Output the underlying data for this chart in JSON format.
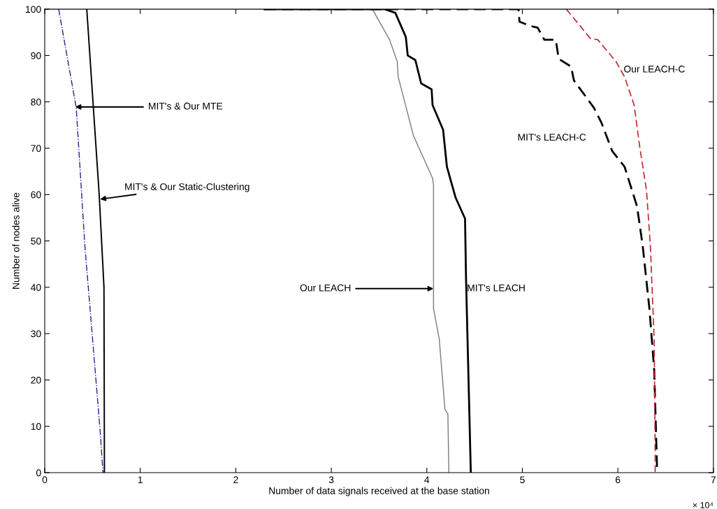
{
  "chart_data": {
    "type": "line",
    "xlabel": "Number of data signals received at the base station",
    "ylabel": "Number of nodes alive",
    "xlim": [
      0,
      7
    ],
    "xticks": [
      0,
      1,
      2,
      3,
      4,
      5,
      6,
      7
    ],
    "ylim": [
      0,
      100
    ],
    "yticks": [
      0,
      10,
      20,
      30,
      40,
      50,
      60,
      70,
      80,
      90,
      100
    ],
    "grid": false,
    "legend": false,
    "marker": "none",
    "series": [
      {
        "color": "#23238f",
        "line_style": "dashdot",
        "x": [
          0.146,
          0.33,
          0.42,
          0.58,
          0.61
        ],
        "values": [
          100,
          78.7,
          49,
          9,
          0
        ]
      },
      {
        "color": "#000000",
        "line_style": "solid",
        "x": [
          0.44,
          0.57,
          0.62,
          0.625
        ],
        "values": [
          100,
          60,
          40,
          0
        ]
      },
      {
        "color": "#7a7a7a",
        "line_style": "solid",
        "x": [
          2.3,
          3.43,
          3.61,
          3.69,
          3.7,
          3.86,
          4.06,
          4.07,
          4.07,
          4.13,
          4.19,
          4.22,
          4.23,
          4.23
        ],
        "values": [
          100,
          100,
          93.4,
          88.7,
          85.4,
          72.7,
          63.5,
          62,
          35.4,
          28.8,
          13.6,
          12.7,
          0.9,
          0
        ]
      },
      {
        "color": "#000000",
        "line_style": "solid",
        "x": [
          2.3,
          3.56,
          3.67,
          3.78,
          3.8,
          3.88,
          3.94,
          4.05,
          4.06,
          4.17,
          4.21,
          4.3,
          4.4,
          4.41,
          4.46,
          4.46
        ],
        "values": [
          100,
          100,
          99.2,
          94,
          90,
          89,
          84,
          82.7,
          79.3,
          74,
          66,
          59.4,
          54.8,
          42.2,
          0.3,
          0
        ]
      },
      {
        "color": "#000000",
        "line_style": "dashed",
        "x": [
          2.3,
          4.96,
          4.97,
          5.08,
          5.16,
          5.23,
          5.35,
          5.38,
          5.51,
          5.54,
          5.75,
          5.83,
          5.94,
          6.07,
          6.2,
          6.26,
          6.33,
          6.38,
          6.41,
          6.41
        ],
        "values": [
          100,
          100,
          97.3,
          96.4,
          96,
          93.4,
          93.4,
          89.3,
          87.6,
          84.6,
          78.7,
          75.4,
          69.4,
          66,
          57.5,
          48.9,
          35.4,
          22.2,
          0.9,
          0
        ]
      },
      {
        "color": "#c0272d",
        "line_style": "dashed",
        "x": [
          5.46,
          5.62,
          5.71,
          5.79,
          5.98,
          6.07,
          6.17,
          6.23,
          6.3,
          6.34,
          6.38,
          6.39,
          6.39
        ],
        "values": [
          100,
          96,
          93.7,
          93.4,
          88.7,
          85.4,
          79.3,
          70.1,
          60.8,
          48.9,
          28.8,
          5.6,
          0
        ]
      }
    ],
    "annotations": [
      {
        "text": "MIT's & Our MTE",
        "x": 0.32,
        "y": 78.9
      },
      {
        "text": "MIT's & Our Static-Clustering",
        "x": 0.58,
        "y": 59
      },
      {
        "text": "Our LEACH",
        "x": 4.07,
        "y": 39.7
      },
      {
        "text": "MIT's LEACH",
        "x": 4.42,
        "y": 39.7
      },
      "MIT's LEACH-C",
      {
        "text": "Our LEACH-C",
        "x": 6.06,
        "y": 86.9
      },
      "× 10⁴"
    ]
  }
}
